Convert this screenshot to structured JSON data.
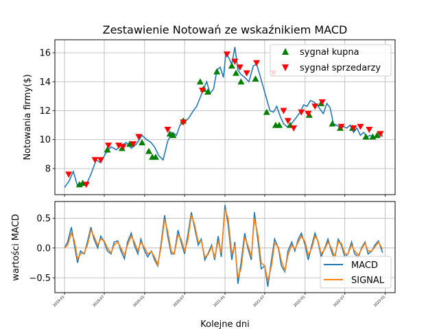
{
  "chart_data": [
    {
      "type": "line",
      "title": "Zestawienie Notowań ze wskaźnikiem MACD",
      "ylabel": "Notowania firmy($)",
      "ylim": [
        6.2,
        16.9
      ],
      "yticks": [
        8,
        10,
        12,
        14,
        16
      ],
      "grid": true,
      "legend_position": "top-right",
      "price": {
        "name": "",
        "color": "#1f77b4",
        "x": [
          "2019-01-01",
          "2019-01-20",
          "2019-02-10",
          "2019-03-01",
          "2019-03-20",
          "2019-04-10",
          "2019-05-01",
          "2019-05-25",
          "2019-06-15",
          "2019-07-05",
          "2019-08-01",
          "2019-08-25",
          "2019-09-15",
          "2019-10-10",
          "2019-11-01",
          "2019-11-25",
          "2019-12-20",
          "2020-01-10",
          "2020-01-30",
          "2020-02-15",
          "2020-03-05",
          "2020-03-25",
          "2020-04-15",
          "2020-05-05",
          "2020-05-25",
          "2020-06-10",
          "2020-07-01",
          "2020-07-20",
          "2020-08-10",
          "2020-08-25",
          "2020-09-10",
          "2020-09-25",
          "2020-10-10",
          "2020-10-25",
          "2020-11-10",
          "2020-11-25",
          "2020-12-10",
          "2020-12-25",
          "2021-01-05",
          "2021-01-20",
          "2021-02-01",
          "2021-02-15",
          "2021-03-01",
          "2021-03-15",
          "2021-04-01",
          "2021-04-20",
          "2021-05-10",
          "2021-05-25",
          "2021-06-10",
          "2021-06-25",
          "2021-07-10",
          "2021-07-25",
          "2021-08-10",
          "2021-08-25",
          "2021-09-10",
          "2021-09-25",
          "2021-10-10",
          "2021-10-25",
          "2021-11-10",
          "2021-11-25",
          "2021-12-10",
          "2021-12-25",
          "2022-01-10",
          "2022-01-25",
          "2022-02-10",
          "2022-02-25",
          "2022-03-10",
          "2022-03-25",
          "2022-04-10",
          "2022-04-25",
          "2022-05-10",
          "2022-05-25",
          "2022-06-10",
          "2022-06-25",
          "2022-07-10",
          "2022-07-25",
          "2022-08-10",
          "2022-08-25",
          "2022-09-10",
          "2022-09-25",
          "2022-10-10",
          "2022-10-25",
          "2022-11-10",
          "2022-11-25",
          "2022-12-10",
          "2022-12-20"
        ],
        "y": [
          6.7,
          7.1,
          7.8,
          6.8,
          7.0,
          6.9,
          7.6,
          8.6,
          8.4,
          9.0,
          9.5,
          9.3,
          9.6,
          9.8,
          9.4,
          9.7,
          10.3,
          10.0,
          9.8,
          9.5,
          8.9,
          8.6,
          9.9,
          10.5,
          10.3,
          11.0,
          11.2,
          11.5,
          12.0,
          12.3,
          12.9,
          13.5,
          14.0,
          13.2,
          13.5,
          14.8,
          15.0,
          14.3,
          16.0,
          15.6,
          15.2,
          16.4,
          14.8,
          14.5,
          14.3,
          14.0,
          15.1,
          15.2,
          14.4,
          13.6,
          12.8,
          12.0,
          11.9,
          12.3,
          11.6,
          11.1,
          10.9,
          11.0,
          11.3,
          11.6,
          11.9,
          12.4,
          12.3,
          12.7,
          12.6,
          12.4,
          12.1,
          11.8,
          12.5,
          12.2,
          11.1,
          11.0,
          10.8,
          10.9,
          10.8,
          11.0,
          10.5,
          10.8,
          10.3,
          10.5,
          10.2,
          10.3,
          10.1,
          10.4,
          10.5,
          10.2
        ]
      },
      "series": [
        {
          "name": "sygnał kupna",
          "marker": "triangle-up",
          "color": "#008000",
          "x": [
            "2019-03-10",
            "2019-03-25",
            "2019-07-15",
            "2019-09-20",
            "2019-10-25",
            "2019-12-20",
            "2020-01-20",
            "2020-02-05",
            "2020-02-20",
            "2020-04-25",
            "2020-05-10",
            "2020-06-25",
            "2020-09-10",
            "2020-09-25",
            "2020-10-15",
            "2020-11-25",
            "2021-02-01",
            "2021-02-20",
            "2021-03-15",
            "2021-05-20",
            "2021-07-10",
            "2021-08-20",
            "2021-09-05",
            "2021-10-25",
            "2022-01-20",
            "2022-03-15",
            "2022-05-05",
            "2022-06-10",
            "2022-08-05",
            "2022-10-05",
            "2022-11-05",
            "2022-11-25"
          ],
          "y": [
            6.9,
            7.0,
            9.3,
            9.4,
            9.7,
            9.8,
            9.2,
            8.8,
            8.8,
            10.4,
            10.3,
            11.3,
            14.0,
            13.5,
            13.3,
            14.7,
            15.1,
            14.6,
            14.0,
            14.2,
            11.9,
            11.0,
            11.0,
            11.0,
            11.7,
            12.5,
            11.1,
            10.8,
            10.8,
            10.2,
            10.2,
            10.3
          ]
        },
        {
          "name": "sygnał sprzedarzy",
          "marker": "triangle-down",
          "color": "#ff0000",
          "x": [
            "2019-01-20",
            "2019-04-10",
            "2019-05-20",
            "2019-06-15",
            "2019-07-20",
            "2019-09-05",
            "2019-09-25",
            "2019-11-10",
            "2019-12-05",
            "2020-04-15",
            "2020-06-25",
            "2020-09-20",
            "2021-01-10",
            "2021-02-15",
            "2021-03-10",
            "2021-04-10",
            "2021-05-25",
            "2021-08-10",
            "2021-09-25",
            "2021-10-15",
            "2021-11-10",
            "2021-12-15",
            "2022-01-15",
            "2022-02-15",
            "2022-03-20",
            "2022-06-15",
            "2022-08-10",
            "2022-09-10",
            "2022-10-20",
            "2022-12-10"
          ],
          "y": [
            7.6,
            6.9,
            8.6,
            8.6,
            9.6,
            9.6,
            9.5,
            9.7,
            10.2,
            10.7,
            11.2,
            13.4,
            15.9,
            15.4,
            15.0,
            14.6,
            15.3,
            14.6,
            12.0,
            11.3,
            10.8,
            11.9,
            11.8,
            12.3,
            12.6,
            10.9,
            10.8,
            10.9,
            10.7,
            10.4
          ]
        }
      ]
    },
    {
      "type": "line",
      "title": "",
      "xlabel": "Kolejne dni",
      "ylabel": "wartości MACD",
      "ylim": [
        -0.75,
        0.78
      ],
      "yticks": [
        -0.5,
        0.0,
        0.5
      ],
      "ytick_labels": [
        "−0.5",
        "0.0",
        "0.5"
      ],
      "grid": true,
      "legend_position": "bottom-right",
      "x_ticks": [
        "2019-01",
        "2019-07",
        "2020-01",
        "2020-07",
        "2021-01",
        "2021-07",
        "2022-01",
        "2022-07",
        "2023-01"
      ],
      "series": [
        {
          "name": "MACD",
          "color": "#1f77b4",
          "x": [
            "2019-01-01",
            "2019-01-15",
            "2019-02-01",
            "2019-02-15",
            "2019-03-01",
            "2019-03-15",
            "2019-04-01",
            "2019-04-15",
            "2019-05-01",
            "2019-05-15",
            "2019-06-01",
            "2019-06-15",
            "2019-07-01",
            "2019-07-15",
            "2019-08-01",
            "2019-08-15",
            "2019-09-01",
            "2019-09-15",
            "2019-10-01",
            "2019-10-15",
            "2019-11-01",
            "2019-11-15",
            "2019-12-01",
            "2019-12-15",
            "2020-01-01",
            "2020-01-15",
            "2020-02-01",
            "2020-02-15",
            "2020-03-01",
            "2020-03-15",
            "2020-04-01",
            "2020-04-15",
            "2020-05-01",
            "2020-05-15",
            "2020-06-01",
            "2020-06-15",
            "2020-07-01",
            "2020-07-15",
            "2020-08-01",
            "2020-08-15",
            "2020-09-01",
            "2020-09-15",
            "2020-10-01",
            "2020-10-15",
            "2020-11-01",
            "2020-11-15",
            "2020-12-01",
            "2020-12-15",
            "2021-01-01",
            "2021-01-15",
            "2021-02-01",
            "2021-02-15",
            "2021-03-01",
            "2021-03-15",
            "2021-04-01",
            "2021-04-15",
            "2021-05-01",
            "2021-05-15",
            "2021-06-01",
            "2021-06-15",
            "2021-07-01",
            "2021-07-15",
            "2021-08-01",
            "2021-08-15",
            "2021-09-01",
            "2021-09-15",
            "2021-10-01",
            "2021-10-15",
            "2021-11-01",
            "2021-11-15",
            "2021-12-01",
            "2021-12-15",
            "2022-01-01",
            "2022-01-15",
            "2022-02-01",
            "2022-02-15",
            "2022-03-01",
            "2022-03-15",
            "2022-04-01",
            "2022-04-15",
            "2022-05-01",
            "2022-05-15",
            "2022-06-01",
            "2022-06-15",
            "2022-07-01",
            "2022-07-15",
            "2022-08-01",
            "2022-08-15",
            "2022-09-01",
            "2022-09-15",
            "2022-10-01",
            "2022-10-15",
            "2022-11-01",
            "2022-11-15",
            "2022-12-01",
            "2022-12-20"
          ],
          "y": [
            0.0,
            0.1,
            0.35,
            0.05,
            -0.25,
            -0.05,
            -0.1,
            0.1,
            0.35,
            0.15,
            0.0,
            0.2,
            0.1,
            -0.05,
            -0.1,
            0.1,
            0.12,
            -0.05,
            -0.18,
            0.1,
            0.25,
            0.05,
            -0.1,
            0.15,
            -0.05,
            -0.15,
            -0.05,
            -0.2,
            -0.3,
            0.05,
            0.55,
            0.2,
            -0.1,
            -0.1,
            0.3,
            0.1,
            -0.1,
            0.2,
            0.6,
            0.35,
            0.05,
            0.15,
            -0.2,
            -0.1,
            0.05,
            -0.2,
            0.2,
            -0.15,
            0.72,
            0.4,
            -0.2,
            0.1,
            -0.6,
            -0.25,
            0.25,
            0.0,
            -0.2,
            0.6,
            0.1,
            -0.35,
            -0.3,
            -0.65,
            -0.2,
            0.15,
            0.0,
            -0.3,
            -0.4,
            -0.05,
            0.1,
            -0.05,
            0.15,
            0.25,
            0.05,
            -0.2,
            0.05,
            0.25,
            0.1,
            -0.15,
            0.0,
            0.15,
            -0.05,
            -0.2,
            0.15,
            0.05,
            -0.15,
            -0.1,
            0.1,
            -0.1,
            -0.15,
            0.0,
            0.1,
            -0.1,
            -0.05,
            0.05,
            0.12,
            -0.08
          ]
        },
        {
          "name": "SIGNAL",
          "color": "#ff7f0e",
          "x": [
            "2019-01-01",
            "2019-01-15",
            "2019-02-01",
            "2019-02-15",
            "2019-03-01",
            "2019-03-15",
            "2019-04-01",
            "2019-04-15",
            "2019-05-01",
            "2019-05-15",
            "2019-06-01",
            "2019-06-15",
            "2019-07-01",
            "2019-07-15",
            "2019-08-01",
            "2019-08-15",
            "2019-09-01",
            "2019-09-15",
            "2019-10-01",
            "2019-10-15",
            "2019-11-01",
            "2019-11-15",
            "2019-12-01",
            "2019-12-15",
            "2020-01-01",
            "2020-01-15",
            "2020-02-01",
            "2020-02-15",
            "2020-03-01",
            "2020-03-15",
            "2020-04-01",
            "2020-04-15",
            "2020-05-01",
            "2020-05-15",
            "2020-06-01",
            "2020-06-15",
            "2020-07-01",
            "2020-07-15",
            "2020-08-01",
            "2020-08-15",
            "2020-09-01",
            "2020-09-15",
            "2020-10-01",
            "2020-10-15",
            "2020-11-01",
            "2020-11-15",
            "2020-12-01",
            "2020-12-15",
            "2021-01-01",
            "2021-01-15",
            "2021-02-01",
            "2021-02-15",
            "2021-03-01",
            "2021-03-15",
            "2021-04-01",
            "2021-04-15",
            "2021-05-01",
            "2021-05-15",
            "2021-06-01",
            "2021-06-15",
            "2021-07-01",
            "2021-07-15",
            "2021-08-01",
            "2021-08-15",
            "2021-09-01",
            "2021-09-15",
            "2021-10-01",
            "2021-10-15",
            "2021-11-01",
            "2021-11-15",
            "2021-12-01",
            "2021-12-15",
            "2022-01-01",
            "2022-01-15",
            "2022-02-01",
            "2022-02-15",
            "2022-03-01",
            "2022-03-15",
            "2022-04-01",
            "2022-04-15",
            "2022-05-01",
            "2022-05-15",
            "2022-06-01",
            "2022-06-15",
            "2022-07-01",
            "2022-07-15",
            "2022-08-01",
            "2022-08-15",
            "2022-09-01",
            "2022-09-15",
            "2022-10-01",
            "2022-10-15",
            "2022-11-01",
            "2022-11-15",
            "2022-12-01",
            "2022-12-20"
          ],
          "y": [
            0.0,
            0.05,
            0.25,
            0.12,
            -0.18,
            -0.1,
            -0.08,
            0.05,
            0.3,
            0.2,
            0.05,
            0.15,
            0.12,
            0.0,
            -0.08,
            0.05,
            0.1,
            0.0,
            -0.12,
            0.05,
            0.2,
            0.1,
            -0.05,
            0.1,
            0.0,
            -0.1,
            -0.06,
            -0.15,
            -0.28,
            0.0,
            0.48,
            0.28,
            -0.05,
            -0.1,
            0.22,
            0.15,
            -0.05,
            0.12,
            0.55,
            0.4,
            0.1,
            0.12,
            -0.15,
            -0.12,
            0.02,
            -0.15,
            0.12,
            -0.08,
            0.65,
            0.5,
            -0.1,
            0.05,
            -0.5,
            -0.35,
            0.18,
            0.05,
            -0.15,
            0.5,
            0.2,
            -0.25,
            -0.3,
            -0.55,
            -0.3,
            0.08,
            0.02,
            -0.22,
            -0.38,
            -0.12,
            0.05,
            -0.02,
            0.1,
            0.2,
            0.1,
            -0.12,
            0.0,
            0.2,
            0.12,
            -0.1,
            -0.02,
            0.1,
            0.0,
            -0.15,
            0.1,
            0.08,
            -0.1,
            -0.1,
            0.05,
            -0.05,
            -0.12,
            -0.02,
            0.08,
            -0.05,
            -0.05,
            0.02,
            0.1,
            -0.02
          ]
        }
      ]
    }
  ]
}
